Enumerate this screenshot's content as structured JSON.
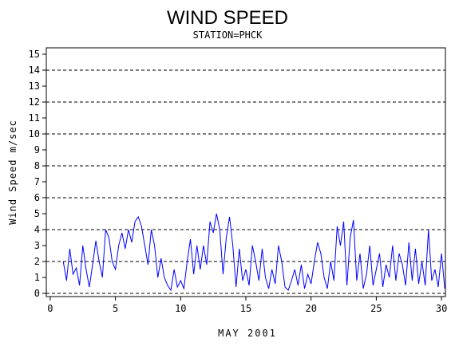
{
  "chart_data": {
    "type": "line",
    "title": "WIND SPEED",
    "subtitle": "STATION=PHCK",
    "xlabel": "MAY 2001",
    "ylabel": "Wind Speed m/sec",
    "xlim": [
      -0.3,
      30.3
    ],
    "xticks": [
      0,
      5,
      10,
      15,
      20,
      25,
      30
    ],
    "ylim": [
      -0.2,
      15.4
    ],
    "yticks": [
      0,
      1,
      2,
      3,
      4,
      5,
      6,
      7,
      8,
      9,
      10,
      11,
      12,
      13,
      14,
      15
    ],
    "ygrid": [
      0,
      2,
      4,
      6,
      8,
      10,
      12,
      14
    ],
    "x": [
      1,
      1.25,
      1.5,
      1.75,
      2,
      2.25,
      2.5,
      2.75,
      3,
      3.25,
      3.5,
      3.75,
      4,
      4.25,
      4.5,
      4.75,
      5,
      5.25,
      5.5,
      5.75,
      6,
      6.25,
      6.5,
      6.75,
      7,
      7.25,
      7.5,
      7.75,
      8,
      8.25,
      8.5,
      8.75,
      9,
      9.25,
      9.5,
      9.75,
      10,
      10.25,
      10.5,
      10.75,
      11,
      11.25,
      11.5,
      11.75,
      12,
      12.25,
      12.5,
      12.75,
      13,
      13.25,
      13.5,
      13.75,
      14,
      14.25,
      14.5,
      14.75,
      15,
      15.25,
      15.5,
      15.75,
      16,
      16.25,
      16.5,
      16.75,
      17,
      17.25,
      17.5,
      17.75,
      18,
      18.25,
      18.5,
      18.75,
      19,
      19.25,
      19.5,
      19.75,
      20,
      20.25,
      20.5,
      20.75,
      21,
      21.25,
      21.5,
      21.75,
      22,
      22.25,
      22.5,
      22.75,
      23,
      23.25,
      23.5,
      23.75,
      24,
      24.25,
      24.5,
      24.75,
      25,
      25.25,
      25.5,
      25.75,
      26,
      26.25,
      26.5,
      26.75,
      27,
      27.25,
      27.5,
      27.75,
      28,
      28.25,
      28.5,
      28.75,
      29,
      29.25,
      29.5,
      29.75,
      30,
      30.25
    ],
    "series": [
      {
        "color": "#0000ff",
        "values": [
          2.0,
          0.8,
          2.8,
          1.2,
          1.6,
          0.5,
          3.0,
          1.5,
          0.4,
          1.8,
          3.3,
          2.0,
          1.0,
          4.0,
          3.5,
          2.0,
          1.5,
          3.0,
          3.8,
          2.8,
          4.0,
          3.2,
          4.5,
          4.8,
          4.2,
          3.0,
          1.8,
          4.0,
          3.0,
          1.0,
          2.2,
          1.0,
          0.5,
          0.2,
          1.5,
          0.4,
          0.8,
          0.3,
          2.0,
          3.4,
          1.2,
          3.0,
          1.5,
          3.0,
          1.8,
          4.5,
          3.8,
          5.0,
          4.0,
          1.2,
          3.5,
          4.8,
          3.0,
          0.4,
          2.8,
          0.8,
          1.5,
          0.5,
          3.0,
          2.0,
          0.8,
          2.8,
          1.0,
          0.3,
          1.5,
          0.6,
          3.0,
          2.0,
          0.4,
          0.2,
          0.8,
          1.5,
          0.5,
          1.8,
          0.3,
          1.2,
          0.6,
          2.0,
          3.2,
          2.5,
          1.0,
          0.3,
          2.0,
          0.8,
          4.2,
          3.0,
          4.5,
          0.5,
          3.5,
          4.6,
          0.8,
          2.5,
          0.3,
          1.2,
          3.0,
          0.5,
          1.5,
          2.5,
          0.4,
          1.8,
          1.0,
          3.0,
          0.8,
          2.5,
          1.8,
          0.5,
          3.2,
          0.8,
          2.8,
          0.6,
          2.0,
          0.5,
          4.0,
          0.8,
          1.5,
          0.4,
          2.5,
          0.3
        ]
      }
    ]
  }
}
